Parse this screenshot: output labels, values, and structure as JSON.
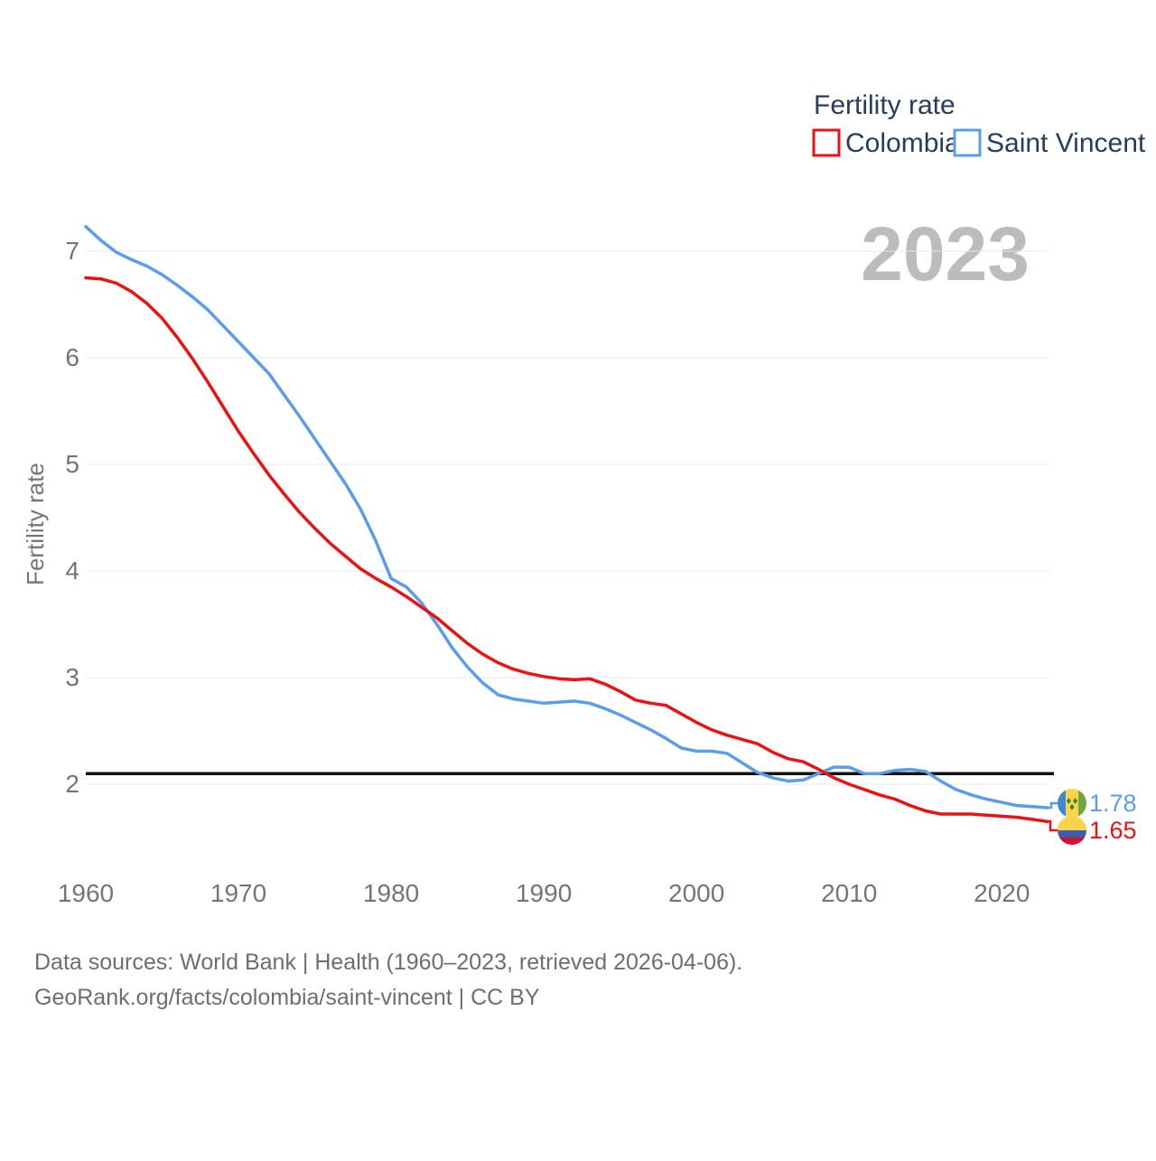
{
  "legend": {
    "title": "Fertility rate"
  },
  "watermark": "2023",
  "chart_data": {
    "type": "line",
    "title": "Fertility rate",
    "xlabel": "",
    "ylabel": "Fertility rate",
    "xlim": [
      1960,
      2023
    ],
    "ylim": [
      1.5,
      7.45
    ],
    "x_ticks": [
      1960,
      1970,
      1980,
      1990,
      2000,
      2010,
      2020
    ],
    "y_ticks": [
      2,
      3,
      4,
      5,
      6,
      7
    ],
    "grid": true,
    "legend_position": "top-right",
    "reference_line": {
      "value": 2.1,
      "color": "#111111"
    },
    "years_start": 1960,
    "series": [
      {
        "name": "Colombia",
        "color": "#ec1212",
        "end_label": "1.65",
        "values": [
          6.75,
          6.74,
          6.7,
          6.62,
          6.51,
          6.37,
          6.19,
          5.99,
          5.77,
          5.54,
          5.31,
          5.1,
          4.9,
          4.72,
          4.55,
          4.4,
          4.26,
          4.14,
          4.02,
          3.93,
          3.85,
          3.76,
          3.66,
          3.56,
          3.44,
          3.32,
          3.22,
          3.14,
          3.08,
          3.04,
          3.01,
          2.99,
          2.98,
          2.99,
          2.94,
          2.87,
          2.79,
          2.76,
          2.74,
          2.66,
          2.58,
          2.51,
          2.46,
          2.42,
          2.38,
          2.3,
          2.24,
          2.21,
          2.14,
          2.06,
          2.0,
          1.95,
          1.9,
          1.86,
          1.8,
          1.75,
          1.72,
          1.72,
          1.72,
          1.71,
          1.7,
          1.69,
          1.67,
          1.65
        ]
      },
      {
        "name": "Saint Vincent",
        "color": "#5b9de8",
        "end_label": "1.78",
        "values": [
          7.23,
          7.1,
          6.99,
          6.92,
          6.86,
          6.78,
          6.68,
          6.57,
          6.45,
          6.3,
          6.15,
          6.0,
          5.85,
          5.65,
          5.45,
          5.24,
          5.03,
          4.82,
          4.58,
          4.28,
          3.93,
          3.85,
          3.7,
          3.5,
          3.28,
          3.1,
          2.95,
          2.84,
          2.8,
          2.78,
          2.76,
          2.77,
          2.78,
          2.76,
          2.71,
          2.65,
          2.58,
          2.51,
          2.43,
          2.34,
          2.31,
          2.31,
          2.29,
          2.2,
          2.11,
          2.06,
          2.03,
          2.04,
          2.1,
          2.16,
          2.16,
          2.1,
          2.1,
          2.13,
          2.14,
          2.12,
          2.03,
          1.95,
          1.9,
          1.86,
          1.83,
          1.8,
          1.79,
          1.78
        ]
      }
    ]
  },
  "flags": {
    "saint_vincent": {
      "blue": "#4286d6",
      "yellow": "#fcd34a",
      "green": "#71a83d",
      "diamond": "#2f8432"
    },
    "colombia": {
      "yellow": "#fbd24b",
      "blue": "#3a5fb2",
      "red": "#d6122e"
    }
  },
  "colors": {
    "gridline": "#e8e8e8",
    "axis_text": "#757575",
    "legend_text": "#263d5d",
    "watermark": "#bcbcbc",
    "footer_text": "#6e6e6e"
  },
  "footer": {
    "line1": "Data sources: World Bank | Health (1960–2023, retrieved 2026-04-06).",
    "line2": "GeoRank.org/facts/colombia/saint-vincent | CC BY"
  }
}
